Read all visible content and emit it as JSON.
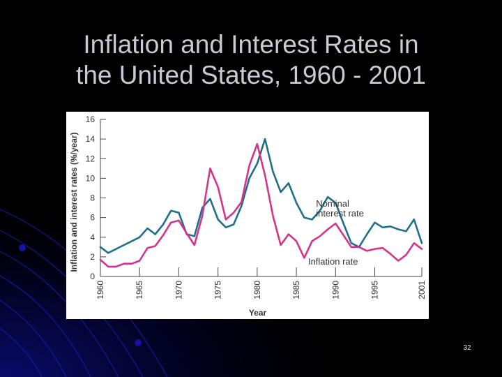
{
  "slide": {
    "title_lines": [
      "Inflation and Interest Rates in",
      "the United States, 1960 - 2001"
    ],
    "page_number": "32",
    "background": "#000000",
    "decoration_color": "#1a1aa8"
  },
  "chart_data": {
    "type": "line",
    "title": "",
    "xlabel": "Year",
    "ylabel": "Inflation and interest rates (%/year)",
    "xlim": [
      1960,
      2001
    ],
    "ylim": [
      0,
      16
    ],
    "x_ticks": [
      1960,
      1965,
      1970,
      1975,
      1980,
      1985,
      1990,
      1995,
      2001
    ],
    "x_tick_labels": [
      "1960",
      "1965",
      "1970",
      "1975",
      "1980",
      "1985",
      "1990",
      "1995",
      "2001"
    ],
    "y_ticks": [
      0,
      2,
      4,
      6,
      8,
      10,
      12,
      14,
      16
    ],
    "y_tick_labels": [
      "0",
      "2",
      "4",
      "6",
      "8",
      "10",
      "12",
      "14",
      "16"
    ],
    "grid": false,
    "legend": "none",
    "x": [
      1960,
      1961,
      1962,
      1963,
      1964,
      1965,
      1966,
      1967,
      1968,
      1969,
      1970,
      1971,
      1972,
      1973,
      1974,
      1975,
      1976,
      1977,
      1978,
      1979,
      1980,
      1981,
      1982,
      1983,
      1984,
      1985,
      1986,
      1987,
      1988,
      1989,
      1990,
      1991,
      1992,
      1993,
      1994,
      1995,
      1996,
      1997,
      1998,
      1999,
      2000,
      2001
    ],
    "series": [
      {
        "name": "Nominal interest rate",
        "color": "#1f6f8b",
        "values": [
          3.0,
          2.4,
          2.8,
          3.2,
          3.6,
          4.0,
          4.9,
          4.3,
          5.3,
          6.7,
          6.5,
          4.3,
          4.1,
          7.0,
          7.9,
          5.8,
          5.0,
          5.3,
          7.2,
          10.0,
          11.5,
          14.0,
          10.7,
          8.6,
          9.5,
          7.5,
          6.0,
          5.8,
          6.7,
          8.1,
          7.5,
          5.4,
          3.4,
          3.0,
          4.3,
          5.5,
          5.0,
          5.1,
          4.8,
          4.6,
          5.8,
          3.4
        ]
      },
      {
        "name": "Inflation rate",
        "color": "#d6338a",
        "values": [
          1.7,
          1.0,
          1.0,
          1.3,
          1.3,
          1.6,
          2.9,
          3.1,
          4.2,
          5.5,
          5.7,
          4.4,
          3.2,
          6.2,
          11.0,
          9.1,
          5.8,
          6.5,
          7.6,
          11.3,
          13.5,
          10.3,
          6.2,
          3.2,
          4.3,
          3.6,
          1.9,
          3.6,
          4.1,
          4.8,
          5.4,
          4.2,
          3.0,
          3.0,
          2.6,
          2.8,
          2.9,
          2.3,
          1.6,
          2.2,
          3.4,
          2.8
        ]
      }
    ],
    "annotations": [
      {
        "text_lines": [
          "Nominal",
          "interest rate"
        ],
        "series": "Nominal interest rate"
      },
      {
        "text_lines": [
          "Inflation rate"
        ],
        "series": "Inflation rate"
      }
    ]
  }
}
